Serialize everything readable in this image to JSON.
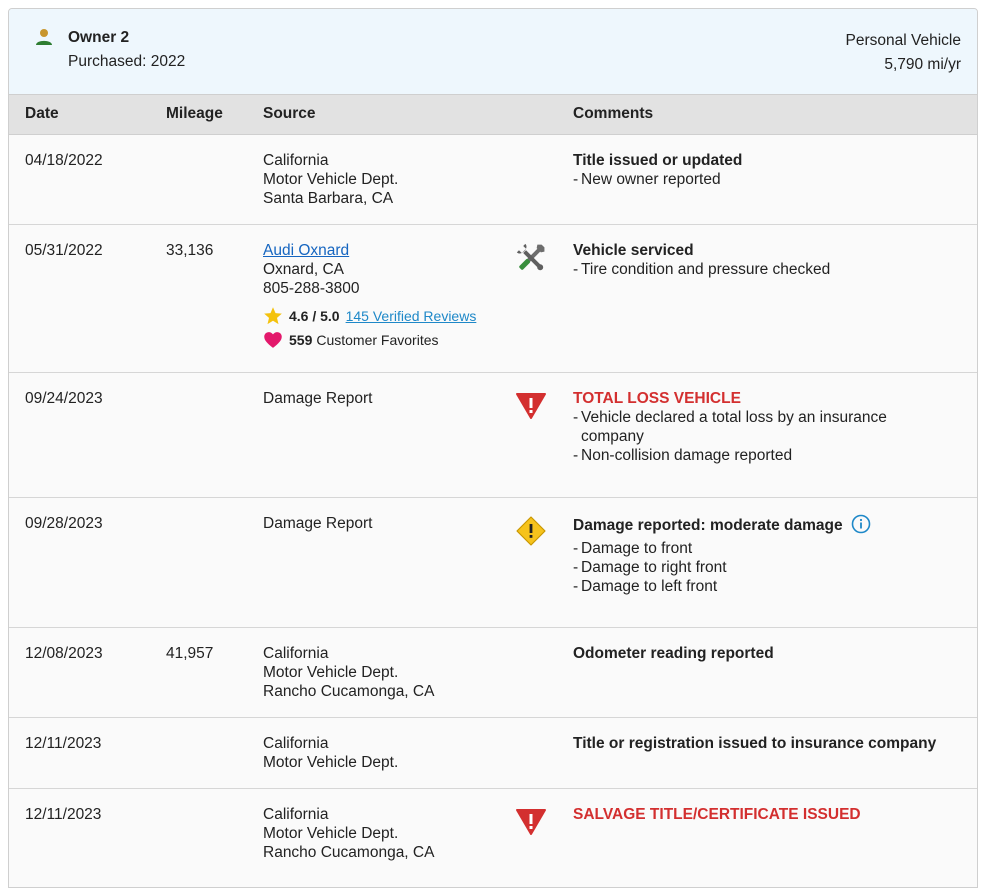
{
  "owner": {
    "icon": "person-icon",
    "name": "Owner 2",
    "purchased": "Purchased: 2022",
    "vehicle_type": "Personal Vehicle",
    "mileage_per_year": "5,790 mi/yr"
  },
  "columns": {
    "date": "Date",
    "mileage": "Mileage",
    "source": "Source",
    "comments": "Comments"
  },
  "colors": {
    "alert_red": "#d32f2f",
    "warning_yellow": "#f6c31c",
    "link_blue": "#1565c0",
    "service_green": "#388e3c"
  },
  "rows": [
    {
      "date": "04/18/2022",
      "mileage": "",
      "source": [
        "California",
        "Motor Vehicle Dept.",
        "Santa Barbara, CA"
      ],
      "icon": "",
      "title": "Title issued or updated",
      "bullets": [
        "New owner reported"
      ]
    },
    {
      "date": "05/31/2022",
      "mileage": "33,136",
      "dealer_link": "Audi Oxnard",
      "source": [
        "Oxnard, CA",
        "805-288-3800"
      ],
      "rating": "4.6 / 5.0",
      "reviews_link": "145 Verified Reviews",
      "favorites_count": "559",
      "favorites_label": "Customer Favorites",
      "icon": "wrench-screwdriver-icon",
      "title": "Vehicle serviced",
      "bullets": [
        "Tire condition and pressure checked"
      ]
    },
    {
      "date": "09/24/2023",
      "mileage": "",
      "source": [
        "Damage Report"
      ],
      "icon": "alert-triangle-icon",
      "title": "TOTAL LOSS VEHICLE",
      "bullets": [
        "Vehicle declared a total loss by an insurance",
        "company",
        "Non-collision damage reported"
      ]
    },
    {
      "date": "09/28/2023",
      "mileage": "",
      "source": [
        "Damage Report"
      ],
      "icon": "warning-diamond-icon",
      "title": "Damage reported: moderate damage",
      "bullets": [
        "Damage to front",
        "Damage to right front",
        "Damage to left front"
      ]
    },
    {
      "date": "12/08/2023",
      "mileage": "41,957",
      "source": [
        "California",
        "Motor Vehicle Dept.",
        "Rancho Cucamonga, CA"
      ],
      "icon": "",
      "title": "Odometer reading reported",
      "bullets": []
    },
    {
      "date": "12/11/2023",
      "mileage": "",
      "source": [
        "California",
        "Motor Vehicle Dept."
      ],
      "icon": "",
      "title": "Title or registration issued to insurance company",
      "bullets": []
    },
    {
      "date": "12/11/2023",
      "mileage": "",
      "source": [
        "California",
        "Motor Vehicle Dept.",
        "Rancho Cucamonga, CA"
      ],
      "icon": "alert-triangle-icon",
      "title": "SALVAGE TITLE/CERTIFICATE ISSUED",
      "bullets": []
    }
  ]
}
